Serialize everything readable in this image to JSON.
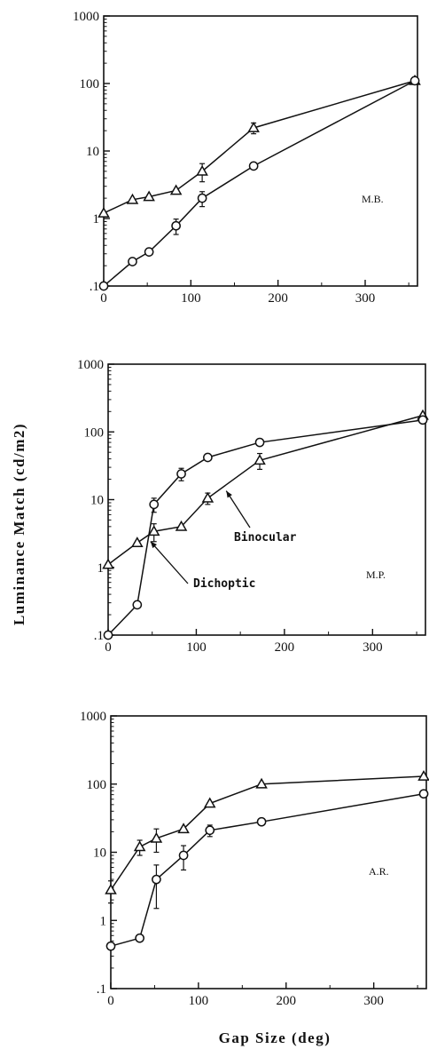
{
  "figure": {
    "ylabel": "Luminance  Match  (cd/m2)",
    "xlabel": "Gap  Size  (deg)",
    "colors": {
      "ink": "#111111",
      "background": "#ffffff"
    }
  },
  "chart_data": [
    {
      "type": "line",
      "subject": "M.B.",
      "xticks": [
        "0",
        "100",
        "200",
        "300"
      ],
      "yticks": [
        "1000",
        "100",
        "10",
        "1",
        ".1"
      ],
      "xlim": [
        0,
        360
      ],
      "ylim": [
        0.1,
        1000
      ],
      "yscale": "log",
      "grid": false,
      "series": [
        {
          "marker": "triangle",
          "x": [
            0,
            33,
            52,
            83,
            113,
            172,
            357
          ],
          "y": [
            1.2,
            1.9,
            2.1,
            2.6,
            5.0,
            22,
            110
          ],
          "err": [
            0,
            0,
            0,
            0,
            1.5,
            4,
            0
          ]
        },
        {
          "marker": "circle",
          "x": [
            0,
            33,
            52,
            83,
            113,
            172,
            357
          ],
          "y": [
            0.1,
            0.23,
            0.32,
            0.78,
            2.0,
            6.0,
            110
          ],
          "err": [
            0,
            0,
            0,
            0.2,
            0.5,
            0,
            0
          ]
        }
      ]
    },
    {
      "type": "line",
      "subject": "M.P.",
      "xticks": [
        "0",
        "100",
        "200",
        "300"
      ],
      "yticks": [
        "1000",
        "100",
        "10",
        "1",
        ".1"
      ],
      "xlim": [
        0,
        360
      ],
      "ylim": [
        0.1,
        1000
      ],
      "yscale": "log",
      "grid": false,
      "annotations": [
        {
          "text": "Binocular",
          "series": 0,
          "point_x": 130
        },
        {
          "text": "Dichoptic",
          "series": 1,
          "point_x": 45
        }
      ],
      "series": [
        {
          "marker": "triangle",
          "x": [
            0,
            33,
            52,
            83,
            113,
            172,
            357
          ],
          "y": [
            1.1,
            2.3,
            3.4,
            4.0,
            10.5,
            38,
            175
          ],
          "err": [
            0,
            0,
            1,
            0,
            2,
            10,
            0
          ]
        },
        {
          "marker": "circle",
          "x": [
            0,
            33,
            52,
            83,
            113,
            172,
            357
          ],
          "y": [
            0.1,
            0.28,
            8.5,
            24,
            42,
            70,
            150
          ],
          "err": [
            0,
            0,
            2,
            5,
            0,
            0,
            0
          ]
        }
      ]
    },
    {
      "type": "line",
      "subject": "A.R.",
      "xticks": [
        "0",
        "100",
        "200",
        "300"
      ],
      "yticks": [
        "1000",
        "100",
        "10",
        "1",
        ".1"
      ],
      "xlim": [
        0,
        360
      ],
      "ylim": [
        0.1,
        1000
      ],
      "yscale": "log",
      "grid": false,
      "series": [
        {
          "marker": "triangle",
          "x": [
            0,
            33,
            52,
            83,
            113,
            172,
            357
          ],
          "y": [
            2.8,
            12,
            16,
            22,
            52,
            100,
            130
          ],
          "err": [
            1,
            3,
            6,
            0,
            0,
            0,
            0
          ]
        },
        {
          "marker": "circle",
          "x": [
            0,
            33,
            52,
            83,
            113,
            172,
            357
          ],
          "y": [
            0.42,
            0.55,
            4.0,
            9.0,
            21,
            28,
            72
          ],
          "err": [
            0,
            0,
            2.5,
            3.5,
            4,
            0,
            0
          ]
        }
      ]
    }
  ]
}
